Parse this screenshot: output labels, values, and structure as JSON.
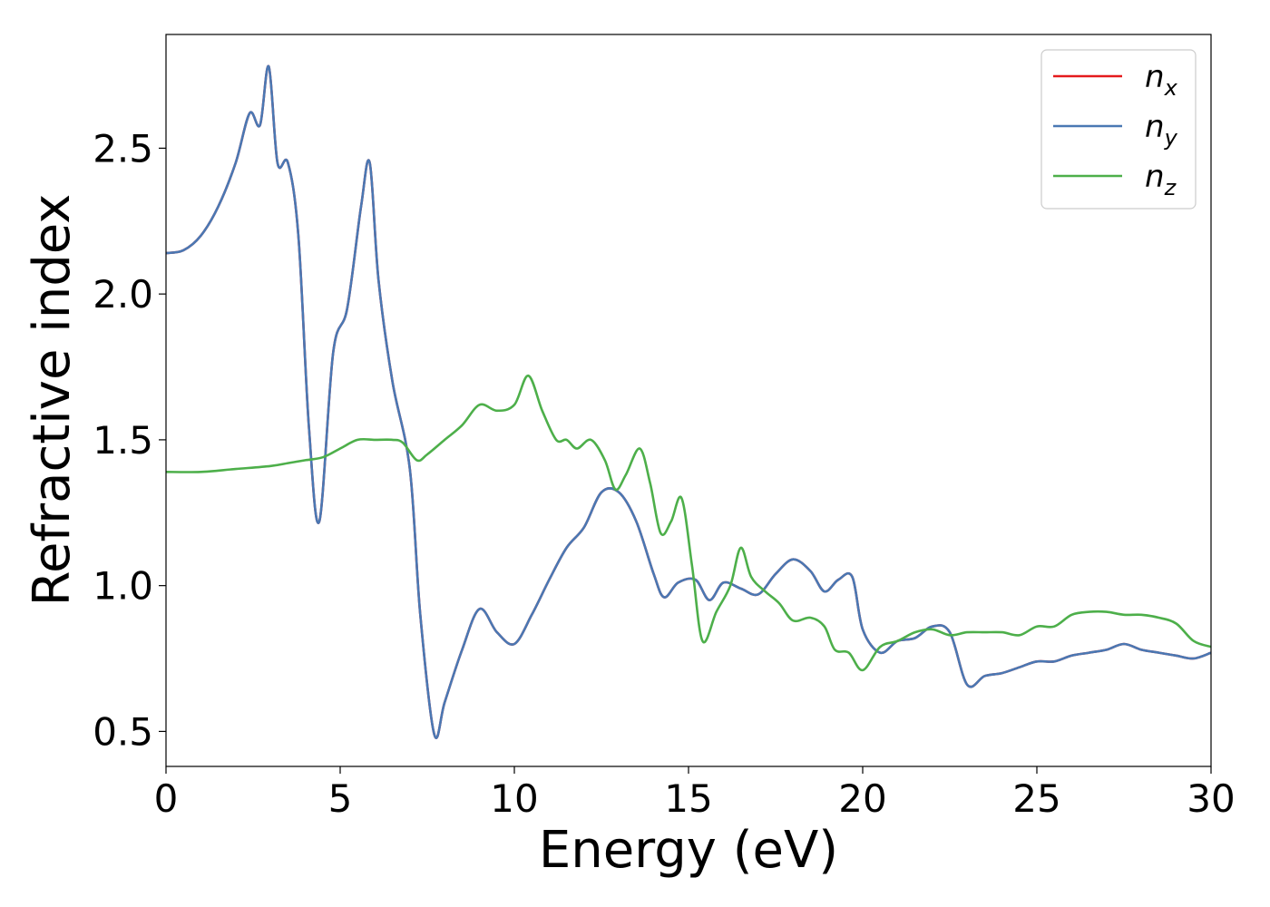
{
  "chart_data": {
    "type": "line",
    "title": "",
    "xlabel": "Energy (eV)",
    "ylabel": "Refractive index",
    "xlim": [
      0,
      30
    ],
    "ylim": [
      0.38,
      2.89
    ],
    "xticks": [
      0,
      5,
      10,
      15,
      20,
      25,
      30
    ],
    "xtick_labels": [
      "0",
      "5",
      "10",
      "15",
      "20",
      "25",
      "30"
    ],
    "yticks": [
      0.5,
      1.0,
      1.5,
      2.0,
      2.5
    ],
    "ytick_labels": [
      "0.5",
      "1.0",
      "1.5",
      "2.0",
      "2.5"
    ],
    "grid": false,
    "legend_position": "top-right",
    "series": [
      {
        "name": "n_x",
        "label_main": "n",
        "label_sub": "x",
        "color": "#e41a1c",
        "x": [
          0,
          0.5,
          1.0,
          1.5,
          2.0,
          2.4,
          2.7,
          2.95,
          3.2,
          3.5,
          3.8,
          4.1,
          4.4,
          4.8,
          5.2,
          5.6,
          5.85,
          6.1,
          6.5,
          7.0,
          7.3,
          7.7,
          8.0,
          8.5,
          9.0,
          9.5,
          10.0,
          10.5,
          11.0,
          11.5,
          12.0,
          12.5,
          13.0,
          13.5,
          14.0,
          14.3,
          14.7,
          15.2,
          15.6,
          16.0,
          16.5,
          17.0,
          17.5,
          18.0,
          18.5,
          18.9,
          19.3,
          19.7,
          20.0,
          20.5,
          21.0,
          21.5,
          22.0,
          22.5,
          23.0,
          23.5,
          24.0,
          24.5,
          25.0,
          25.5,
          26.0,
          26.5,
          27.0,
          27.5,
          28.0,
          28.5,
          29.0,
          29.5,
          30.0
        ],
        "y": [
          2.14,
          2.15,
          2.2,
          2.3,
          2.45,
          2.62,
          2.58,
          2.78,
          2.45,
          2.45,
          2.2,
          1.55,
          1.22,
          1.8,
          1.95,
          2.3,
          2.45,
          2.05,
          1.7,
          1.4,
          0.9,
          0.49,
          0.6,
          0.78,
          0.92,
          0.84,
          0.8,
          0.9,
          1.02,
          1.13,
          1.2,
          1.32,
          1.32,
          1.22,
          1.04,
          0.96,
          1.01,
          1.02,
          0.95,
          1.01,
          0.99,
          0.97,
          1.04,
          1.09,
          1.05,
          0.98,
          1.02,
          1.03,
          0.85,
          0.77,
          0.81,
          0.82,
          0.86,
          0.84,
          0.66,
          0.69,
          0.7,
          0.72,
          0.74,
          0.74,
          0.76,
          0.77,
          0.78,
          0.8,
          0.78,
          0.77,
          0.76,
          0.75,
          0.77
        ]
      },
      {
        "name": "n_y",
        "label_main": "n",
        "label_sub": "y",
        "color": "#4a78b3",
        "x": [
          0,
          0.5,
          1.0,
          1.5,
          2.0,
          2.4,
          2.7,
          2.95,
          3.2,
          3.5,
          3.8,
          4.1,
          4.4,
          4.8,
          5.2,
          5.6,
          5.85,
          6.1,
          6.5,
          7.0,
          7.3,
          7.7,
          8.0,
          8.5,
          9.0,
          9.5,
          10.0,
          10.5,
          11.0,
          11.5,
          12.0,
          12.5,
          13.0,
          13.5,
          14.0,
          14.3,
          14.7,
          15.2,
          15.6,
          16.0,
          16.5,
          17.0,
          17.5,
          18.0,
          18.5,
          18.9,
          19.3,
          19.7,
          20.0,
          20.5,
          21.0,
          21.5,
          22.0,
          22.5,
          23.0,
          23.5,
          24.0,
          24.5,
          25.0,
          25.5,
          26.0,
          26.5,
          27.0,
          27.5,
          28.0,
          28.5,
          29.0,
          29.5,
          30.0
        ],
        "y": [
          2.14,
          2.15,
          2.2,
          2.3,
          2.45,
          2.62,
          2.58,
          2.78,
          2.45,
          2.45,
          2.2,
          1.55,
          1.22,
          1.8,
          1.95,
          2.3,
          2.45,
          2.05,
          1.7,
          1.4,
          0.9,
          0.49,
          0.6,
          0.78,
          0.92,
          0.84,
          0.8,
          0.9,
          1.02,
          1.13,
          1.2,
          1.32,
          1.32,
          1.22,
          1.04,
          0.96,
          1.01,
          1.02,
          0.95,
          1.01,
          0.99,
          0.97,
          1.04,
          1.09,
          1.05,
          0.98,
          1.02,
          1.03,
          0.85,
          0.77,
          0.81,
          0.82,
          0.86,
          0.84,
          0.66,
          0.69,
          0.7,
          0.72,
          0.74,
          0.74,
          0.76,
          0.77,
          0.78,
          0.8,
          0.78,
          0.77,
          0.76,
          0.75,
          0.77
        ]
      },
      {
        "name": "n_z",
        "label_main": "n",
        "label_sub": "z",
        "color": "#4daf4a",
        "x": [
          0,
          1.0,
          2.0,
          3.0,
          3.5,
          4.0,
          4.5,
          5.0,
          5.5,
          6.0,
          6.5,
          6.8,
          7.2,
          7.5,
          8.0,
          8.5,
          9.0,
          9.5,
          10.0,
          10.4,
          10.8,
          11.2,
          11.5,
          11.8,
          12.2,
          12.6,
          12.9,
          13.2,
          13.6,
          13.9,
          14.2,
          14.5,
          14.8,
          15.1,
          15.4,
          15.8,
          16.2,
          16.5,
          16.8,
          17.2,
          17.6,
          18.0,
          18.5,
          18.9,
          19.2,
          19.6,
          20.0,
          20.5,
          21.0,
          21.5,
          22.0,
          22.5,
          23.0,
          23.5,
          24.0,
          24.5,
          25.0,
          25.5,
          26.0,
          26.5,
          27.0,
          27.5,
          28.0,
          28.5,
          29.0,
          29.5,
          30.0
        ],
        "y": [
          1.39,
          1.39,
          1.4,
          1.41,
          1.42,
          1.43,
          1.44,
          1.47,
          1.5,
          1.5,
          1.5,
          1.49,
          1.43,
          1.45,
          1.5,
          1.55,
          1.62,
          1.6,
          1.62,
          1.72,
          1.6,
          1.5,
          1.5,
          1.47,
          1.5,
          1.43,
          1.33,
          1.38,
          1.47,
          1.35,
          1.18,
          1.22,
          1.3,
          1.07,
          0.81,
          0.91,
          1.0,
          1.13,
          1.03,
          0.98,
          0.94,
          0.88,
          0.89,
          0.86,
          0.78,
          0.77,
          0.71,
          0.79,
          0.81,
          0.84,
          0.85,
          0.83,
          0.84,
          0.84,
          0.84,
          0.83,
          0.86,
          0.86,
          0.9,
          0.91,
          0.91,
          0.9,
          0.9,
          0.89,
          0.87,
          0.81,
          0.79
        ]
      }
    ]
  }
}
